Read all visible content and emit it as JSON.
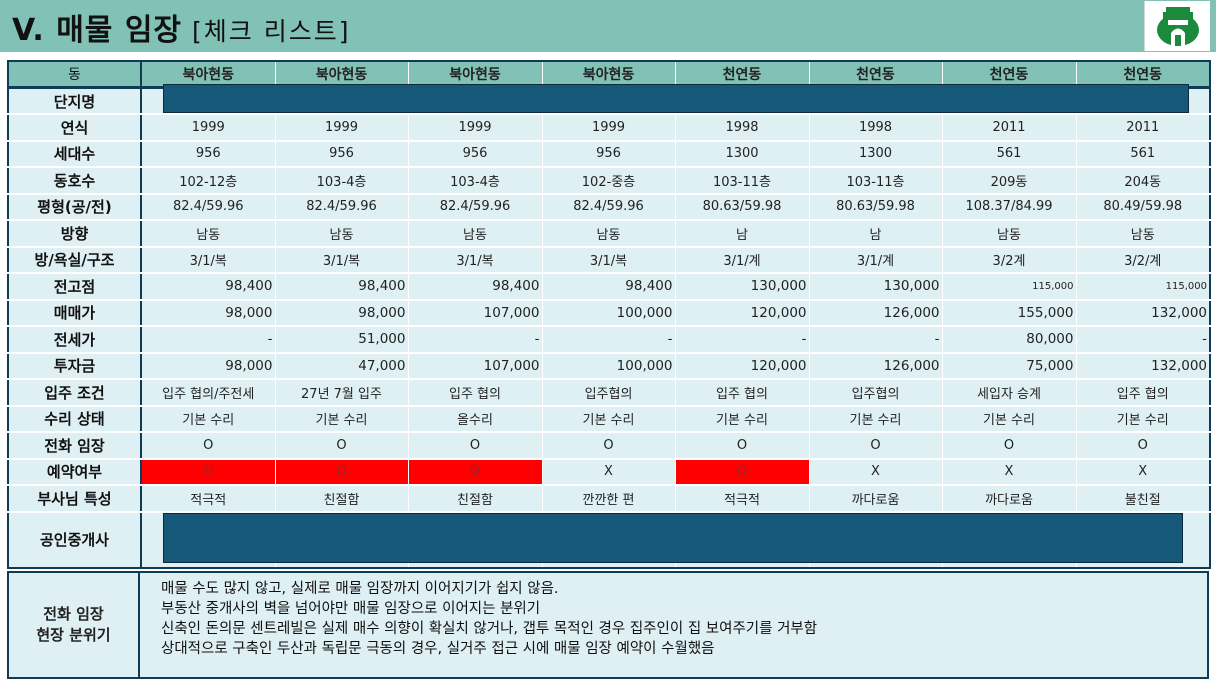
{
  "header": {
    "title": "V. 매물 임장",
    "subtitle": "[체크 리스트]"
  },
  "table": {
    "corner": "동",
    "columns": [
      "북아현동",
      "북아현동",
      "북아현동",
      "북아현동",
      "천연동",
      "천연동",
      "천연동",
      "천연동"
    ],
    "rows": [
      {
        "label": "단지명",
        "values": [
          "",
          "",
          "",
          "",
          "",
          "",
          "",
          ""
        ]
      },
      {
        "label": "연식",
        "values": [
          "1999",
          "1999",
          "1999",
          "1999",
          "1998",
          "1998",
          "2011",
          "2011"
        ]
      },
      {
        "label": "세대수",
        "values": [
          "956",
          "956",
          "956",
          "956",
          "1300",
          "1300",
          "561",
          "561"
        ]
      },
      {
        "label": "동호수",
        "values": [
          "102-12층",
          "103-4층",
          "103-4층",
          "102-중층",
          "103-11층",
          "103-11층",
          "209동",
          "204동"
        ]
      },
      {
        "label": "평형(공/전)",
        "values": [
          "82.4/59.96",
          "82.4/59.96",
          "82.4/59.96",
          "82.4/59.96",
          "80.63/59.98",
          "80.63/59.98",
          "108.37/84.99",
          "80.49/59.98"
        ]
      },
      {
        "label": "방향",
        "values": [
          "남동",
          "남동",
          "남동",
          "남동",
          "남",
          "남",
          "남동",
          "남동"
        ]
      },
      {
        "label": "방/욕실/구조",
        "values": [
          "3/1/복",
          "3/1/복",
          "3/1/복",
          "3/1/복",
          "3/1/계",
          "3/1/계",
          "3/2계",
          "3/2/계"
        ]
      },
      {
        "label": "전고점",
        "values": [
          "98,400",
          "98,400",
          "98,400",
          "98,400",
          "130,000",
          "130,000",
          "115,000",
          "115,000"
        ]
      },
      {
        "label": "매매가",
        "values": [
          "98,000",
          "98,000",
          "107,000",
          "100,000",
          "120,000",
          "126,000",
          "155,000",
          "132,000"
        ]
      },
      {
        "label": "전세가",
        "values": [
          "-",
          "51,000",
          "-",
          "-",
          "-",
          "-",
          "80,000",
          "-"
        ]
      },
      {
        "label": "투자금",
        "values": [
          "98,000",
          "47,000",
          "107,000",
          "100,000",
          "120,000",
          "126,000",
          "75,000",
          "132,000"
        ]
      },
      {
        "label": "입주 조건",
        "values": [
          "입주 협의/주전세",
          "27년 7월 입주",
          "입주 협의",
          "입주협의",
          "입주 협의",
          "입주협의",
          "세입자 승계",
          "입주 협의"
        ]
      },
      {
        "label": "수리 상태",
        "values": [
          "기본 수리",
          "기본 수리",
          "올수리",
          "기본 수리",
          "기본 수리",
          "기본 수리",
          "기본 수리",
          "기본 수리"
        ]
      },
      {
        "label": "전화 임장",
        "values": [
          "O",
          "O",
          "O",
          "O",
          "O",
          "O",
          "O",
          "O"
        ]
      },
      {
        "label": "예약여부",
        "values": [
          "O",
          "O",
          "O",
          "X",
          "O",
          "X",
          "X",
          "X"
        ]
      },
      {
        "label": "부사님 특성",
        "values": [
          "적극적",
          "친절함",
          "친절함",
          "깐깐한 편",
          "적극적",
          "까다로움",
          "까다로움",
          "불친절"
        ]
      },
      {
        "label": "공인중개사",
        "values": [
          "",
          "",
          "",
          "",
          "",
          "",
          "",
          ""
        ]
      }
    ]
  },
  "note": {
    "label_line1": "전화 임장",
    "label_line2": "현장 분위기",
    "lines": [
      "매물 수도 많지 않고, 실제로 매물 임장까지 이어지기가 쉽지 않음.",
      "부동산 중개사의 벽을 넘어야만 매물 임장으로 이어지는 분위기",
      "신축인 돈의문 센트레빌은 실제 매수 의향이 확실치 않거나, 갭투 목적인 경우 집주인이 집 보여주기를 거부함",
      "상대적으로 구축인 두산과 독립문 극동의 경우, 실거주 접근 시에 매물 임장 예약이 수월했음"
    ]
  },
  "colors": {
    "header_bg": "#82c1b6",
    "cell_bg": "#dff0f4",
    "border": "#0e3b55",
    "bar": "#165877",
    "highlight": "#ff0000"
  }
}
